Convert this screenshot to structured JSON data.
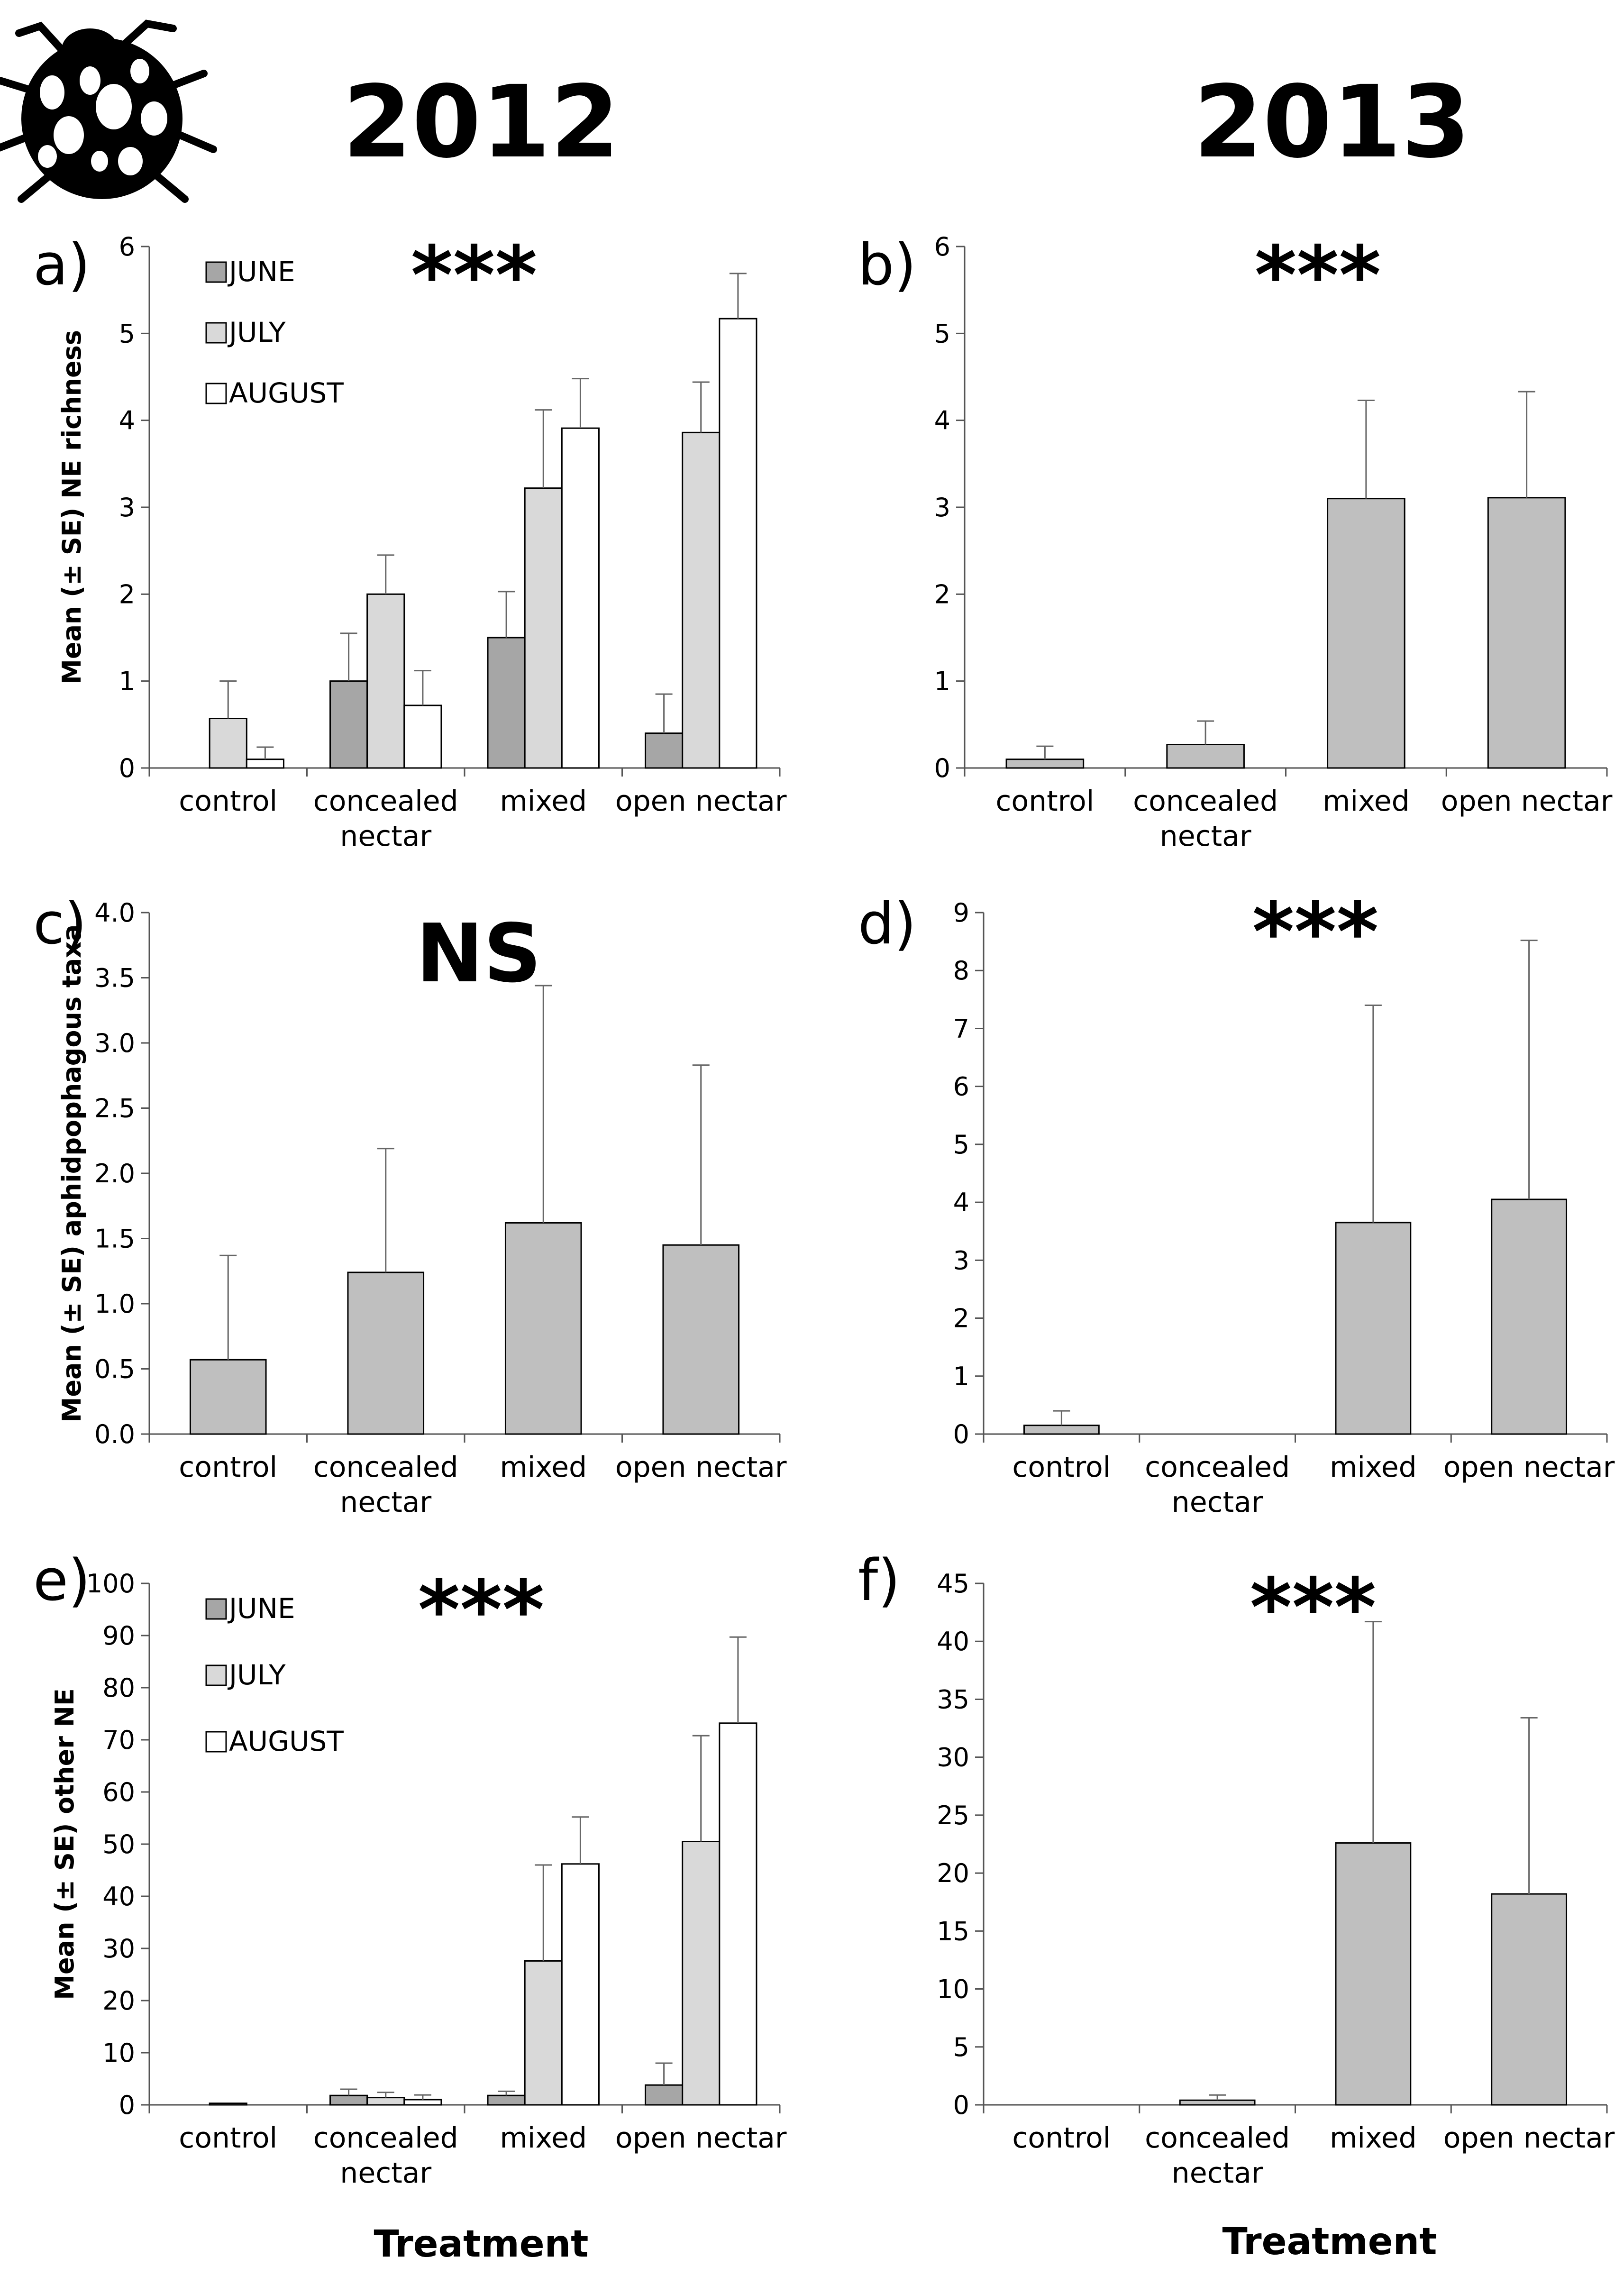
{
  "header": {
    "year_left": "2012",
    "year_right": "2013"
  },
  "x_axis_label": "Treatment",
  "colors": {
    "june": "#a6a6a6",
    "july": "#d9d9d9",
    "august": "#ffffff",
    "single": "#bfbfbf",
    "axis": "#555555"
  },
  "chart_data": [
    {
      "id": "a",
      "panel_label": "a)",
      "significance": "***",
      "type": "bar",
      "ylabel": "Mean (± SE) NE richness",
      "ylim": [
        0,
        6
      ],
      "yticks": [
        "0",
        "1",
        "2",
        "3",
        "4",
        "5",
        "6"
      ],
      "categories": [
        "control",
        "concealed\nnectar",
        "mixed",
        "open nectar"
      ],
      "legend": [
        "JUNE",
        "JULY",
        "AUGUST"
      ],
      "legend_placement": "top-left",
      "series": [
        {
          "name": "JUNE",
          "values": [
            0,
            1.0,
            1.5,
            0.4
          ],
          "errors": [
            0,
            0.55,
            0.53,
            0.45
          ]
        },
        {
          "name": "JULY",
          "values": [
            0.57,
            2.0,
            3.22,
            3.86
          ],
          "errors": [
            0.43,
            0.45,
            0.9,
            0.58
          ]
        },
        {
          "name": "AUGUST",
          "values": [
            0.1,
            0.72,
            3.91,
            5.17
          ],
          "errors": [
            0.14,
            0.4,
            0.57,
            0.52
          ]
        }
      ]
    },
    {
      "id": "b",
      "panel_label": "b)",
      "significance": "***",
      "type": "bar",
      "ylabel": "",
      "ylim": [
        0,
        6
      ],
      "yticks": [
        "0",
        "1",
        "2",
        "3",
        "4",
        "5",
        "6"
      ],
      "categories": [
        "control",
        "concealed\nnectar",
        "mixed",
        "open nectar"
      ],
      "series": [
        {
          "values": [
            0.1,
            0.27,
            3.1,
            3.11
          ],
          "errors": [
            0.15,
            0.27,
            1.13,
            1.22
          ]
        }
      ]
    },
    {
      "id": "c",
      "panel_label": "c)",
      "significance": "NS",
      "type": "bar",
      "ylabel": "Mean (± SE) aphidpophagous taxa",
      "ylim": [
        0,
        4
      ],
      "yticks": [
        "0.0",
        "0.5",
        "1.0",
        "1.5",
        "2.0",
        "2.5",
        "3.0",
        "3.5",
        "4.0"
      ],
      "categories": [
        "control",
        "concealed\nnectar",
        "mixed",
        "open nectar"
      ],
      "series": [
        {
          "values": [
            0.57,
            1.24,
            1.62,
            1.45
          ],
          "errors": [
            0.8,
            0.95,
            1.82,
            1.38
          ]
        }
      ]
    },
    {
      "id": "d",
      "panel_label": "d)",
      "significance": "***",
      "type": "bar",
      "ylabel": "",
      "ylim": [
        0,
        9
      ],
      "yticks": [
        "0",
        "1",
        "2",
        "3",
        "4",
        "5",
        "6",
        "7",
        "8",
        "9"
      ],
      "categories": [
        "control",
        "concealed\nnectar",
        "mixed",
        "open nectar"
      ],
      "series": [
        {
          "values": [
            0.15,
            0,
            3.65,
            4.05
          ],
          "errors": [
            0.25,
            0,
            3.75,
            4.47
          ]
        }
      ]
    },
    {
      "id": "e",
      "panel_label": "e)",
      "significance": "***",
      "type": "bar",
      "ylabel": "Mean (± SE) other NE",
      "ylim": [
        0,
        100
      ],
      "yticks": [
        "0",
        "10",
        "20",
        "30",
        "40",
        "50",
        "60",
        "70",
        "80",
        "90",
        "100"
      ],
      "categories": [
        "control",
        "concealed\nnectar",
        "mixed",
        "open nectar"
      ],
      "legend": [
        "JUNE",
        "JULY",
        "AUGUST"
      ],
      "legend_placement": "top-left",
      "series": [
        {
          "name": "JUNE",
          "values": [
            0,
            1.8,
            1.8,
            3.8
          ],
          "errors": [
            0,
            1.2,
            0.8,
            4.2
          ]
        },
        {
          "name": "JULY",
          "values": [
            0.3,
            1.4,
            27.6,
            50.5
          ],
          "errors": [
            0,
            1.0,
            18.4,
            20.3
          ]
        },
        {
          "name": "AUGUST",
          "values": [
            0,
            1.0,
            46.2,
            73.2
          ],
          "errors": [
            0,
            0.9,
            9.0,
            16.5
          ]
        }
      ]
    },
    {
      "id": "f",
      "panel_label": "f)",
      "significance": "***",
      "type": "bar",
      "ylabel": "",
      "ylim": [
        0,
        45
      ],
      "yticks": [
        "0",
        "5",
        "10",
        "15",
        "20",
        "25",
        "30",
        "35",
        "40",
        "45"
      ],
      "categories": [
        "control",
        "concealed\nnectar",
        "mixed",
        "open nectar"
      ],
      "series": [
        {
          "values": [
            0,
            0.4,
            22.6,
            18.2
          ],
          "errors": [
            0,
            0.45,
            19.1,
            15.2
          ]
        }
      ]
    }
  ]
}
